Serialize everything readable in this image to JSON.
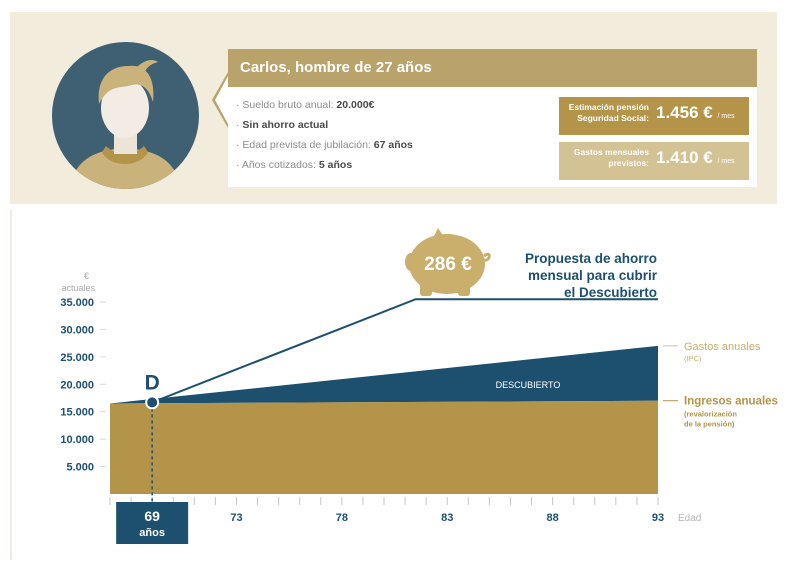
{
  "profile": {
    "title": "Carlos, hombre de 27 años",
    "details": [
      {
        "label": "Sueldo bruto anual: ",
        "value": "20.000€"
      },
      {
        "label": "",
        "value": "Sin ahorro actual"
      },
      {
        "label": "Edad prevista de jubilación: ",
        "value": "67 años"
      },
      {
        "label": "Años cotizados: ",
        "value": "5 años"
      }
    ],
    "pension": {
      "label_line1": "Estimación pensión",
      "label_line2": "Seguridad Social:",
      "value": "1.456 €",
      "unit": "/ mes"
    },
    "expenses": {
      "label_line1": "Gastos mensuales",
      "label_line2": "previstos:",
      "value": "1.410 €",
      "unit": "/ mes"
    }
  },
  "chart_data": {
    "type": "area",
    "y_unit_line1": "€",
    "y_unit_line2": "actuales",
    "xlabel": "Edad",
    "x_ticks": [
      73,
      78,
      83,
      88,
      93
    ],
    "y_ticks": [
      5000,
      10000,
      15000,
      20000,
      25000,
      30000,
      35000
    ],
    "y_tick_labels": [
      "5.000",
      "10.000",
      "15.000",
      "20.000",
      "25.000",
      "30.000",
      "35.000"
    ],
    "xlim": [
      67,
      93
    ],
    "ylim": [
      0,
      37000
    ],
    "start_age": 69,
    "start_age_label": "69",
    "start_age_unit": "años",
    "marker_label": "D",
    "gap_label": "DESCUBIERTO",
    "series": [
      {
        "name": "Ingresos anuales",
        "sub1": "(revalorización",
        "sub2": "de la pensión)",
        "color": "#b39448",
        "x": [
          67,
          93
        ],
        "y": [
          16500,
          17000
        ]
      },
      {
        "name": "Gastos anuales",
        "sub1": "(IPC)",
        "sub2": "",
        "color": "#1d506e",
        "x": [
          67,
          93
        ],
        "y": [
          16500,
          27000
        ]
      }
    ],
    "savings_line": {
      "x": [
        69,
        81.5,
        93
      ],
      "y": [
        16700,
        35500,
        35500
      ],
      "color": "#1d506e"
    },
    "savings": {
      "amount": "286 €",
      "caption_line1": "Propuesta de ahorro",
      "caption_line2": "mensual para cubrir",
      "caption_line3": "el Descubierto"
    }
  }
}
